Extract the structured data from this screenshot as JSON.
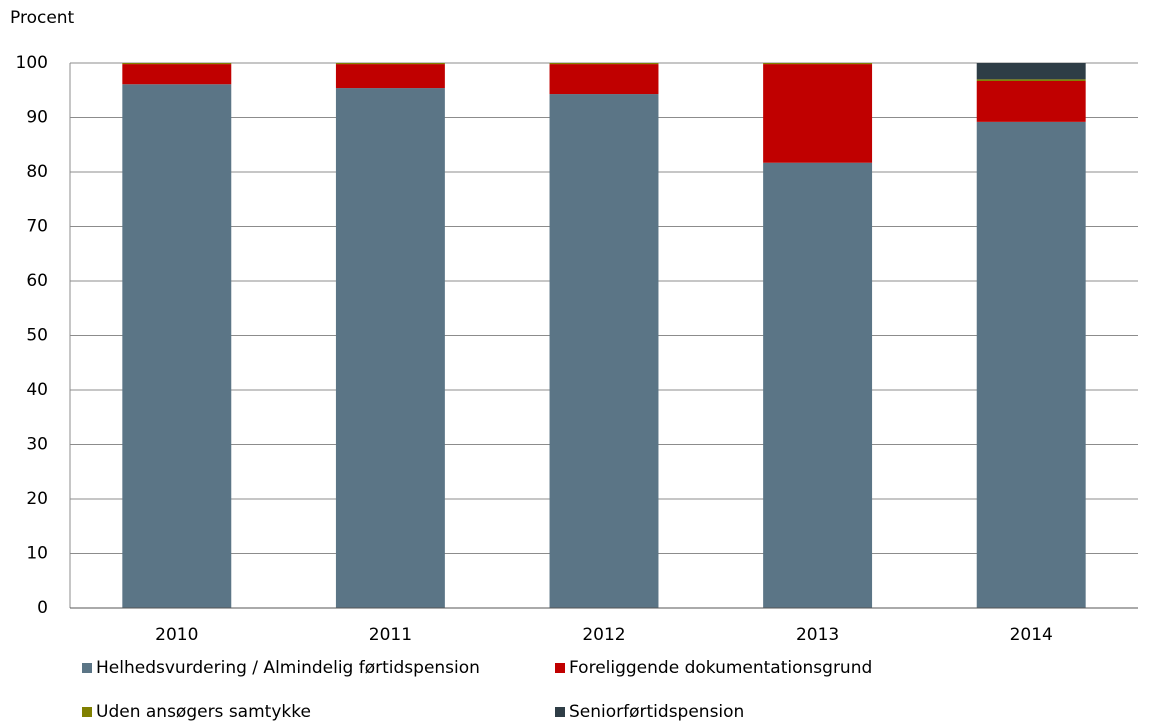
{
  "chart_data": {
    "type": "bar",
    "stacked": true,
    "y_label": "Procent",
    "categories": [
      "2010",
      "2011",
      "2012",
      "2013",
      "2014"
    ],
    "series": [
      {
        "name": "Helhedsvurdering / Almindelig førtidspension",
        "color": "#5b7586",
        "values": [
          96.1,
          95.4,
          94.3,
          81.7,
          89.2
        ]
      },
      {
        "name": "Foreliggende dokumentationsgrund",
        "color": "#c00000",
        "values": [
          3.7,
          4.4,
          5.5,
          18.1,
          7.5
        ]
      },
      {
        "name": "Uden ansøgers samtykke",
        "color": "#808000",
        "values": [
          0.2,
          0.2,
          0.2,
          0.2,
          0.3
        ]
      },
      {
        "name": "Seniorførtidspension",
        "color": "#2e3d46",
        "values": [
          0,
          0,
          0,
          0,
          3.0
        ]
      }
    ],
    "ylim": [
      0,
      100
    ],
    "yticks": [
      0,
      10,
      20,
      30,
      40,
      50,
      60,
      70,
      80,
      90,
      100
    ],
    "grid": true
  }
}
